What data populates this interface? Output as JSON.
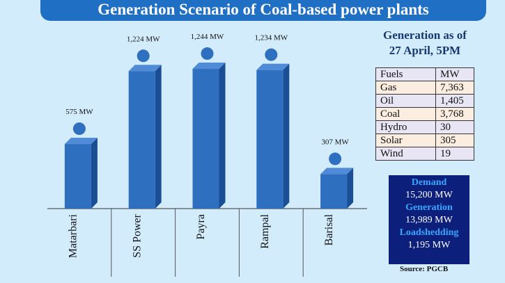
{
  "title": "Generation Scenario of Coal-based power plants",
  "chart_data": {
    "type": "bar",
    "categories": [
      "Matarbari",
      "SS Power",
      "Payra",
      "Rampal",
      "Barisal"
    ],
    "values": [
      575,
      1224,
      1244,
      1234,
      307
    ],
    "data_labels": [
      "575 MW",
      "1,224 MW",
      "1,244 MW",
      "1,234 MW",
      "307 MW"
    ],
    "ylim": [
      0,
      1300
    ],
    "bar_color": "#2e6fc0",
    "bar_side_color": "#1a4f96",
    "dot_color": "#2e6fc0"
  },
  "generation_as_of": {
    "line1": "Generation as of",
    "line2": "27 April, 5PM"
  },
  "fuel_table": {
    "header": [
      "Fuels",
      "MW"
    ],
    "rows": [
      [
        "Gas",
        "7,363"
      ],
      [
        "Oil",
        "1,405"
      ],
      [
        "Coal",
        "3,768"
      ],
      [
        "Hydro",
        "30"
      ],
      [
        "Solar",
        "305"
      ],
      [
        "Wind",
        "19"
      ]
    ]
  },
  "summary": {
    "demand_label": "Demand",
    "demand_value": "15,200 MW",
    "generation_label": "Generation",
    "generation_value": "13,989 MW",
    "loadshedding_label": "Loadshedding",
    "loadshedding_value": "1,195 MW"
  },
  "source": "Source: PGCB"
}
